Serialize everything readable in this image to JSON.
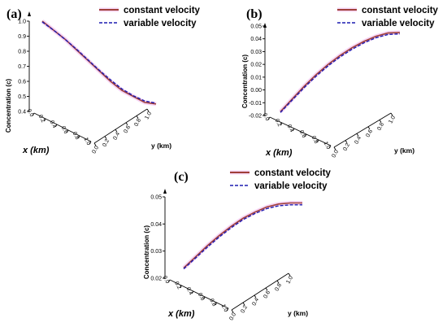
{
  "colors": {
    "constant": "#a0403a",
    "variable": "#1c1cb0",
    "axis": "#000000",
    "band": "#f0b8ee"
  },
  "chart_data": [
    {
      "type": "line",
      "panel_label": "(a)",
      "xlabel": "x (km)",
      "ylabel": "y (km)",
      "zlabel": "Concentration (c)",
      "x_ticks": [
        "0.0",
        "0.2",
        "0.4",
        "0.6",
        "0.8",
        "1.0"
      ],
      "y_ticks": [
        "0.0",
        "0.2",
        "0.4",
        "0.6",
        "0.8",
        "1.0"
      ],
      "z_ticks": [
        "0.4",
        "0.5",
        "0.6",
        "0.7",
        "0.8",
        "0.9",
        "1.0"
      ],
      "zlim": [
        0.4,
        1.0
      ],
      "legend": {
        "position": "top-right",
        "entries": [
          "constant velocity",
          "variable velocity"
        ]
      },
      "t": [
        0,
        0.1,
        0.2,
        0.3,
        0.4,
        0.5,
        0.6,
        0.7,
        0.8,
        0.9,
        1.0
      ],
      "series": [
        {
          "name": "constant velocity",
          "values": [
            1.0,
            0.94,
            0.88,
            0.81,
            0.74,
            0.67,
            0.6,
            0.54,
            0.5,
            0.46,
            0.45
          ]
        },
        {
          "name": "variable velocity",
          "values": [
            1.0,
            0.945,
            0.885,
            0.82,
            0.75,
            0.68,
            0.615,
            0.555,
            0.51,
            0.475,
            0.46
          ]
        }
      ]
    },
    {
      "type": "line",
      "panel_label": "(b)",
      "xlabel": "x (km)",
      "ylabel": "y (km)",
      "zlabel": "Concentration (c)",
      "x_ticks": [
        "0.0",
        "0.2",
        "0.4",
        "0.6",
        "0.8",
        "1.0"
      ],
      "y_ticks": [
        "0.0",
        "0.2",
        "0.4",
        "0.6",
        "0.8",
        "1.0"
      ],
      "z_ticks": [
        "-0.02",
        "-0.01",
        "0.00",
        "0.01",
        "0.02",
        "0.03",
        "0.04",
        "0.05"
      ],
      "zlim": [
        -0.02,
        0.05
      ],
      "legend": {
        "position": "top-right",
        "entries": [
          "constant velocity",
          "variable velocity"
        ]
      },
      "t": [
        0,
        0.1,
        0.2,
        0.3,
        0.4,
        0.5,
        0.6,
        0.7,
        0.8,
        0.9,
        1.0
      ],
      "series": [
        {
          "name": "constant velocity",
          "values": [
            -0.017,
            -0.007,
            0.003,
            0.012,
            0.02,
            0.027,
            0.033,
            0.038,
            0.042,
            0.0445,
            0.045
          ]
        },
        {
          "name": "variable velocity",
          "values": [
            -0.017,
            -0.0072,
            0.0025,
            0.0115,
            0.0195,
            0.0265,
            0.0325,
            0.0375,
            0.0415,
            0.044,
            0.0445
          ]
        }
      ]
    },
    {
      "type": "line",
      "panel_label": "(c)",
      "xlabel": "x (km)",
      "ylabel": "y (km)",
      "zlabel": "Concentration (c)",
      "x_ticks": [
        "0.0",
        "0.2",
        "0.4",
        "0.6",
        "0.8",
        "1.0"
      ],
      "y_ticks": [
        "0.0",
        "0.2",
        "0.4",
        "0.6",
        "0.8",
        "1.0"
      ],
      "z_ticks": [
        "0.02",
        "0.03",
        "0.04",
        "0.05"
      ],
      "zlim": [
        0.015,
        0.055
      ],
      "legend": {
        "position": "top-right",
        "entries": [
          "constant velocity",
          "variable velocity"
        ]
      },
      "t": [
        0,
        0.1,
        0.2,
        0.3,
        0.4,
        0.5,
        0.6,
        0.7,
        0.8,
        0.9,
        1.0
      ],
      "series": [
        {
          "name": "constant velocity",
          "values": [
            0.02,
            0.0255,
            0.031,
            0.036,
            0.0405,
            0.0445,
            0.0475,
            0.05,
            0.0515,
            0.052,
            0.052
          ]
        },
        {
          "name": "variable velocity",
          "values": [
            0.02,
            0.0253,
            0.0307,
            0.0357,
            0.0402,
            0.0442,
            0.0472,
            0.0496,
            0.051,
            0.0515,
            0.0515
          ]
        }
      ]
    }
  ]
}
